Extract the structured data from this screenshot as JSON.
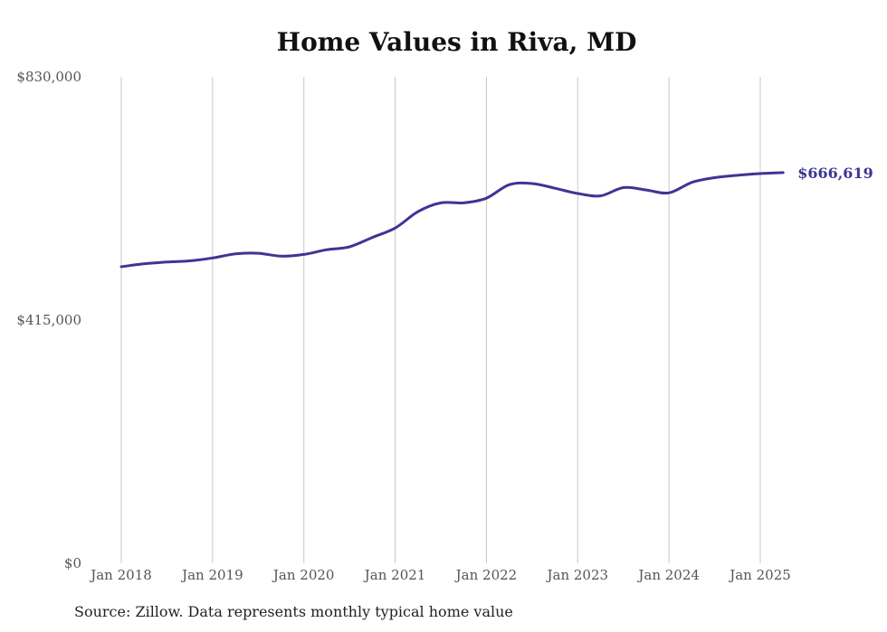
{
  "title": "Home Values in Riva, MD",
  "source": "Source: Zillow. Data represents monthly typical home value",
  "colors": {
    "line": "#3d3594",
    "grid": "#c8c8c8",
    "text": "#555555"
  },
  "chart_data": {
    "type": "line",
    "title": "Home Values in Riva, MD",
    "xlabel": "",
    "ylabel": "",
    "ylim": [
      0,
      830000
    ],
    "yticks": [
      0,
      415000,
      830000
    ],
    "ytick_labels": [
      "$0",
      "$415,000",
      "$830,000"
    ],
    "xticks": [
      "2018-01",
      "2019-01",
      "2020-01",
      "2021-01",
      "2022-01",
      "2023-01",
      "2024-01",
      "2025-01"
    ],
    "xtick_labels": [
      "Jan 2018",
      "Jan 2019",
      "Jan 2020",
      "Jan 2021",
      "Jan 2022",
      "Jan 2023",
      "Jan 2024",
      "Jan 2025"
    ],
    "grid": "vertical",
    "end_label": "$666,619",
    "series": [
      {
        "x": [
          "2018-01",
          "2018-04",
          "2018-07",
          "2018-10",
          "2019-01",
          "2019-04",
          "2019-07",
          "2019-10",
          "2020-01",
          "2020-04",
          "2020-07",
          "2020-10",
          "2021-01",
          "2021-04",
          "2021-07",
          "2021-10",
          "2022-01",
          "2022-04",
          "2022-07",
          "2022-10",
          "2023-01",
          "2023-04",
          "2023-07",
          "2023-10",
          "2024-01",
          "2024-04",
          "2024-07",
          "2024-10",
          "2025-01",
          "2025-04"
        ],
        "values": [
          506000,
          511000,
          514000,
          516000,
          521000,
          528000,
          529000,
          524000,
          527000,
          535000,
          540000,
          556000,
          572000,
          600000,
          615000,
          615000,
          623000,
          646000,
          648000,
          640000,
          631000,
          627000,
          641000,
          637000,
          632000,
          650000,
          658000,
          662000,
          665000,
          666619
        ]
      }
    ]
  }
}
